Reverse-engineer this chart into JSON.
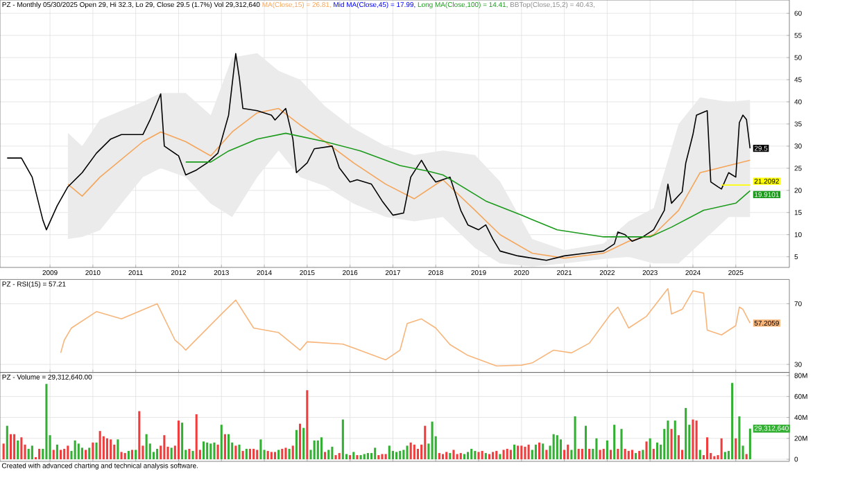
{
  "chart_data": [
    {
      "type": "line",
      "title": "PZ - Monthly 05/30/2025 Open 29, Hi 32.3, Lo 29, Close 29.5 (1.7%) Vol 29,312,640",
      "annotations": [
        "Mid MA(Close,45) = 17.99,",
        "BBTop(Close,15,2) = 40.43,",
        {
          "text": "29.5",
          "x": "2025-05",
          "y": 29.5
        },
        {
          "text": "21.2092",
          "x": "2025-05",
          "y": 21.2092
        },
        {
          "text": "19.9101",
          "x": "2025-05",
          "y": 19.9101
        }
      ],
      "xlim": [
        "2007-11",
        "2026-04"
      ],
      "xticks": [
        "2009",
        "2010",
        "2011",
        "2012",
        "2013",
        "2014",
        "2015",
        "2016",
        "2017",
        "2018",
        "2019",
        "2020",
        "2021",
        "2022",
        "2023",
        "2024",
        "2025"
      ],
      "ylim": [
        2.6,
        63
      ],
      "yticks": [
        5,
        10,
        15,
        20,
        25,
        30,
        35,
        40,
        45,
        50,
        55,
        60
      ],
      "grid": true,
      "series": [
        {
          "name": "MA(Close,15) = 26.81,",
          "color": "#f5a55a",
          "x": [
            "2009-06",
            "2009-10",
            "2010-03",
            "2011-03",
            "2011-08",
            "2012-03",
            "2012-10",
            "2013-04",
            "2013-11",
            "2014-05",
            "2014-11",
            "2015-06",
            "2016-02",
            "2016-11",
            "2017-07",
            "2018-03",
            "2018-12",
            "2019-07",
            "2020-04",
            "2021-01",
            "2021-12",
            "2022-07",
            "2023-02",
            "2023-09",
            "2024-03",
            "2024-11",
            "2025-05"
          ],
          "values": [
            21.4,
            18.7,
            23,
            31,
            33.2,
            31,
            27.8,
            33.2,
            37.5,
            38.5,
            34.8,
            31,
            26.2,
            21.4,
            18.1,
            22.4,
            15.5,
            10,
            5.8,
            4.7,
            5.8,
            8.5,
            10,
            15.5,
            24,
            25.6,
            26.81
          ],
          "lower": [
            9,
            9.5,
            11,
            23,
            25,
            23,
            17,
            14,
            23,
            29,
            23,
            21,
            17,
            14,
            13,
            14,
            7,
            3.5,
            2.8,
            3.5,
            4.5,
            5,
            3.5,
            3.5,
            8,
            14,
            14
          ],
          "upper": [
            33,
            30,
            36,
            40,
            42,
            42,
            37,
            50,
            51,
            47,
            45,
            39,
            34,
            30,
            28,
            29,
            28,
            22,
            9,
            6.5,
            8,
            13,
            16,
            35,
            41,
            40,
            40.43
          ]
        },
        {
          "color": "#000000",
          "x": [
            "2008-01",
            "2008-05",
            "2008-08",
            "2008-11",
            "2008-12",
            "2009-03",
            "2009-06",
            "2009-10",
            "2010-02",
            "2010-06",
            "2010-09",
            "2011-03",
            "2011-05",
            "2011-08",
            "2011-09",
            "2012-01",
            "2012-03",
            "2012-06",
            "2012-09",
            "2012-12",
            "2013-03",
            "2013-05",
            "2013-06",
            "2013-07",
            "2013-11",
            "2014-03",
            "2014-04",
            "2014-07",
            "2014-09",
            "2014-10",
            "2015-01",
            "2015-03",
            "2015-08",
            "2015-10",
            "2016-01",
            "2016-03",
            "2016-07",
            "2016-10",
            "2017-01",
            "2017-04",
            "2017-06",
            "2017-09",
            "2017-11",
            "2018-01",
            "2018-05",
            "2018-08",
            "2018-10",
            "2019-01",
            "2019-03",
            "2019-05",
            "2019-07",
            "2019-12",
            "2020-04",
            "2020-08",
            "2021-01",
            "2021-07",
            "2021-12",
            "2022-03",
            "2022-04",
            "2022-06",
            "2022-08",
            "2022-11",
            "2023-02",
            "2023-05",
            "2023-06",
            "2023-07",
            "2023-10",
            "2023-11",
            "2024-01",
            "2024-02",
            "2024-05",
            "2024-06",
            "2024-08",
            "2024-09",
            "2024-11",
            "2025-01",
            "2025-02",
            "2025-03",
            "2025-04",
            "2025-05"
          ],
          "values": [
            27.3,
            27.3,
            23,
            13.3,
            11.1,
            16.5,
            20.8,
            24,
            28.4,
            31.6,
            32.6,
            32.6,
            35.9,
            41.8,
            30,
            27.8,
            23.5,
            24.6,
            26.2,
            28.4,
            37,
            50.9,
            45.5,
            38.5,
            38,
            37,
            35.9,
            38.5,
            31.6,
            24,
            26.2,
            29.4,
            30,
            25.1,
            21.9,
            22.4,
            21.4,
            17.6,
            14.4,
            14.9,
            23,
            26.8,
            24,
            21.9,
            23,
            15.5,
            12.2,
            11.1,
            12.2,
            9,
            6.3,
            5.2,
            4.7,
            4.2,
            5.2,
            5.8,
            6.3,
            7.9,
            10.6,
            10,
            8.5,
            9.5,
            11.1,
            15.5,
            21.4,
            17.1,
            19.7,
            26.2,
            32.6,
            37,
            38,
            21.9,
            20.8,
            20.3,
            24,
            23,
            35.3,
            37,
            36,
            29.5
          ]
        },
        {
          "name": "Long MA(Close,100) = 14.41,",
          "color": "#1a9a1a",
          "x": [
            "2012-03",
            "2012-10",
            "2013-03",
            "2013-11",
            "2014-07",
            "2015-06",
            "2016-04",
            "2017-03",
            "2017-11",
            "2018-03",
            "2019-03",
            "2020-01",
            "2020-11",
            "2021-12",
            "2023-01",
            "2023-07",
            "2024-04",
            "2025-01",
            "2025-05"
          ],
          "values": [
            26.4,
            26.4,
            28.9,
            31.6,
            32.9,
            31,
            28.9,
            25.6,
            24.3,
            23.5,
            17.6,
            14.4,
            11.1,
            9.5,
            9.5,
            11.7,
            15.5,
            17.1,
            19.9101
          ]
        },
        {
          "color": "#ffff00",
          "x": [
            "2024-09",
            "2025-05"
          ],
          "values": [
            21.2092,
            21.2092
          ]
        }
      ]
    },
    {
      "type": "line",
      "title": "PZ - RSI(15) = 57.21",
      "tick_labels": "y",
      "grid": true,
      "annotations": [
        {
          "text": "57.2059",
          "x": "2025-05",
          "y": 57.2059
        }
      ],
      "xlim": [
        "2007-11",
        "2026-04"
      ],
      "xticks": [
        "2009",
        "2010",
        "2011",
        "2012",
        "2013",
        "2014",
        "2015",
        "2016",
        "2017",
        "2018",
        "2019",
        "2020",
        "2021",
        "2022",
        "2023",
        "2024",
        "2025"
      ],
      "ylim": [
        24.7,
        86
      ],
      "yticks": [
        30,
        70
      ],
      "series": [
        {
          "color": "#f8b57a",
          "x": [
            "2009-04",
            "2009-05",
            "2009-07",
            "2010-02",
            "2010-09",
            "2011-07",
            "2011-12",
            "2012-02",
            "2012-03",
            "2013-01",
            "2013-05",
            "2013-10",
            "2014-05",
            "2014-11",
            "2015-01",
            "2015-11",
            "2016-11",
            "2017-03",
            "2017-05",
            "2017-09",
            "2018-01",
            "2018-05",
            "2018-10",
            "2019-06",
            "2020-01",
            "2020-04",
            "2020-10",
            "2021-03",
            "2021-08",
            "2022-02",
            "2022-04",
            "2022-07",
            "2022-12",
            "2023-06",
            "2023-07",
            "2023-10",
            "2024-01",
            "2024-04",
            "2024-05",
            "2024-09",
            "2025-01",
            "2025-02",
            "2025-03",
            "2025-05"
          ],
          "values": [
            37.6,
            46,
            54,
            64.8,
            60,
            70,
            46,
            42,
            39.4,
            63.2,
            72.4,
            54,
            51,
            39.4,
            44.9,
            43.4,
            33,
            39.4,
            57,
            60,
            54,
            43,
            35.9,
            29,
            29.5,
            31,
            39.4,
            37.6,
            44,
            63.2,
            67.8,
            54,
            61.7,
            80,
            63.2,
            66.3,
            78.5,
            77,
            52.6,
            49.4,
            55.6,
            67.8,
            66.3,
            57.2059
          ]
        }
      ]
    },
    {
      "type": "bar",
      "title": "PZ - Volume = 29,312,640.00",
      "tick_labels": "y",
      "grid": true,
      "annotations": [
        {
          "text": "29,312,640",
          "x": "2025-05",
          "y": 29.31264
        },
        "Created with advanced charting and technical analysis software."
      ],
      "xlim": [
        "2007-11",
        "2026-04"
      ],
      "xticks": [
        "2009",
        "2010",
        "2011",
        "2012",
        "2013",
        "2014",
        "2015",
        "2016",
        "2017",
        "2018",
        "2019",
        "2020",
        "2021",
        "2022",
        "2023",
        "2024",
        "2025"
      ],
      "ylim": [
        -2,
        83
      ],
      "yticks": [
        0,
        {
          "value": 20,
          "label": "20M"
        },
        {
          "value": 40,
          "label": "40M"
        },
        {
          "value": 60,
          "label": "60M"
        },
        {
          "value": 80,
          "label": "80M"
        }
      ],
      "x": [
        "2007-12",
        "2008-01",
        "2008-02",
        "2008-03",
        "2008-04",
        "2008-05",
        "2008-06",
        "2008-07",
        "2008-08",
        "2008-09",
        "2008-10",
        "2008-11",
        "2008-12",
        "2009-01",
        "2009-02",
        "2009-03",
        "2009-04",
        "2009-05",
        "2009-06",
        "2009-07",
        "2009-08",
        "2009-09",
        "2009-10",
        "2009-11",
        "2009-12",
        "2010-01",
        "2010-02",
        "2010-03",
        "2010-04",
        "2010-05",
        "2010-06",
        "2010-07",
        "2010-08",
        "2010-09",
        "2010-10",
        "2010-11",
        "2010-12",
        "2011-01",
        "2011-02",
        "2011-03",
        "2011-04",
        "2011-05",
        "2011-06",
        "2011-07",
        "2011-08",
        "2011-09",
        "2011-10",
        "2011-11",
        "2011-12",
        "2012-01",
        "2012-02",
        "2012-03",
        "2012-04",
        "2012-05",
        "2012-06",
        "2012-07",
        "2012-08",
        "2012-09",
        "2012-10",
        "2012-11",
        "2012-12",
        "2013-01",
        "2013-02",
        "2013-03",
        "2013-04",
        "2013-05",
        "2013-06",
        "2013-07",
        "2013-08",
        "2013-09",
        "2013-10",
        "2013-11",
        "2013-12",
        "2014-01",
        "2014-02",
        "2014-03",
        "2014-04",
        "2014-05",
        "2014-06",
        "2014-07",
        "2014-08",
        "2014-09",
        "2014-10",
        "2014-11",
        "2014-12",
        "2015-01",
        "2015-02",
        "2015-03",
        "2015-04",
        "2015-05",
        "2015-06",
        "2015-07",
        "2015-08",
        "2015-09",
        "2015-10",
        "2015-11",
        "2015-12",
        "2016-01",
        "2016-02",
        "2016-03",
        "2016-04",
        "2016-05",
        "2016-06",
        "2016-07",
        "2016-08",
        "2016-09",
        "2016-10",
        "2016-11",
        "2016-12",
        "2017-01",
        "2017-02",
        "2017-03",
        "2017-04",
        "2017-05",
        "2017-06",
        "2017-07",
        "2017-08",
        "2017-09",
        "2017-10",
        "2017-11",
        "2017-12",
        "2018-01",
        "2018-02",
        "2018-03",
        "2018-04",
        "2018-05",
        "2018-06",
        "2018-07",
        "2018-08",
        "2018-09",
        "2018-10",
        "2018-11",
        "2018-12",
        "2019-01",
        "2019-02",
        "2019-03",
        "2019-04",
        "2019-05",
        "2019-06",
        "2019-07",
        "2019-08",
        "2019-09",
        "2019-10",
        "2019-11",
        "2019-12",
        "2020-01",
        "2020-02",
        "2020-03",
        "2020-04",
        "2020-05",
        "2020-06",
        "2020-07",
        "2020-08",
        "2020-09",
        "2020-10",
        "2020-11",
        "2020-12",
        "2021-01",
        "2021-02",
        "2021-03",
        "2021-04",
        "2021-05",
        "2021-06",
        "2021-07",
        "2021-08",
        "2021-09",
        "2021-10",
        "2021-11",
        "2021-12",
        "2022-01",
        "2022-02",
        "2022-03",
        "2022-04",
        "2022-05",
        "2022-06",
        "2022-07",
        "2022-08",
        "2022-09",
        "2022-10",
        "2022-11",
        "2022-12",
        "2023-01",
        "2023-02",
        "2023-03",
        "2023-04",
        "2023-05",
        "2023-06",
        "2023-07",
        "2023-08",
        "2023-09",
        "2023-10",
        "2023-11",
        "2023-12",
        "2024-01",
        "2024-02",
        "2024-03",
        "2024-04",
        "2024-05",
        "2024-06",
        "2024-07",
        "2024-08",
        "2024-09",
        "2024-10",
        "2024-11",
        "2024-12",
        "2025-01",
        "2025-02",
        "2025-03",
        "2025-04",
        "2025-05"
      ],
      "values": [
        15,
        32,
        24,
        24,
        18,
        21,
        14,
        10,
        13,
        2,
        10,
        10,
        72,
        23,
        9,
        14,
        9,
        10,
        13,
        8,
        18,
        15,
        11,
        9,
        11,
        16,
        16,
        27,
        22,
        20,
        19,
        14,
        19,
        7,
        6,
        8,
        9,
        9,
        46,
        13,
        24,
        15,
        7,
        10,
        13,
        23,
        12,
        11,
        13,
        37,
        35,
        9,
        10,
        8,
        43,
        9,
        17,
        16,
        15,
        16,
        14,
        33,
        24,
        24,
        16,
        13,
        14,
        8,
        10,
        10,
        10,
        9,
        19,
        9,
        8,
        7,
        7,
        9,
        10,
        11,
        10,
        13,
        28,
        34,
        30,
        66,
        9,
        18,
        18,
        21,
        7,
        9,
        12,
        4,
        6,
        38,
        5,
        4,
        7,
        4,
        4,
        5,
        6,
        6,
        11,
        4,
        5,
        5,
        13,
        8,
        7,
        8,
        9,
        13,
        16,
        14,
        10,
        14,
        32,
        15,
        36,
        22,
        6,
        5,
        7,
        6,
        9,
        5,
        6,
        5,
        7,
        10,
        8,
        7,
        8,
        6,
        5,
        7,
        8,
        5,
        9,
        10,
        9,
        14,
        13,
        13,
        12,
        14,
        9,
        14,
        16,
        15,
        9,
        13,
        24,
        23,
        19,
        9,
        14,
        9,
        41,
        10,
        10,
        32,
        10,
        10,
        20,
        9,
        10,
        18,
        9,
        33,
        10,
        29,
        10,
        8,
        9,
        6,
        8,
        9,
        17,
        20,
        10,
        16,
        14,
        29,
        37,
        29,
        37,
        23,
        9,
        49,
        33,
        38,
        37,
        9,
        4,
        21,
        6,
        3,
        4,
        20,
        7,
        8,
        73,
        20,
        41,
        13,
        5,
        29.31264
      ],
      "colors": [
        "#f03c3c",
        "#33b033",
        "#f03c3c",
        "#f03c3c",
        "#33b033",
        "#f03c3c",
        "#f03c3c",
        "#33b033",
        "#33b033",
        "#f03c3c",
        "#f03c3c",
        "#33b033",
        "#33b033",
        "#33b033",
        "#f03c3c",
        "#33b033",
        "#f03c3c",
        "#f03c3c",
        "#f03c3c",
        "#33b033",
        "#33b033",
        "#33b033",
        "#33b033",
        "#f03c3c",
        "#33b033",
        "#f03c3c",
        "#33b033",
        "#f03c3c",
        "#f03c3c",
        "#f03c3c",
        "#f03c3c",
        "#f03c3c",
        "#33b033",
        "#f03c3c",
        "#f03c3c",
        "#33b033",
        "#f03c3c",
        "#33b033",
        "#f03c3c",
        "#f03c3c",
        "#33b033",
        "#33b033",
        "#33b033",
        "#33b033",
        "#f03c3c",
        "#f03c3c",
        "#f03c3c",
        "#33b033",
        "#f03c3c",
        "#f03c3c",
        "#33b033",
        "#33b033",
        "#f03c3c",
        "#33b033",
        "#f03c3c",
        "#f03c3c",
        "#33b033",
        "#33b033",
        "#33b033",
        "#33b033",
        "#f03c3c",
        "#33b033",
        "#f03c3c",
        "#33b033",
        "#33b033",
        "#f03c3c",
        "#33b033",
        "#f03c3c",
        "#33b033",
        "#f03c3c",
        "#f03c3c",
        "#f03c3c",
        "#33b033",
        "#33b033",
        "#f03c3c",
        "#f03c3c",
        "#f03c3c",
        "#33b033",
        "#f03c3c",
        "#f03c3c",
        "#33b033",
        "#f03c3c",
        "#33b033",
        "#f03c3c",
        "#33b033",
        "#f03c3c",
        "#33b033",
        "#33b033",
        "#33b033",
        "#33b033",
        "#f03c3c",
        "#33b033",
        "#33b033",
        "#f03c3c",
        "#f03c3c",
        "#33b033",
        "#33b033",
        "#f03c3c",
        "#33b033",
        "#f03c3c",
        "#33b033",
        "#33b033",
        "#33b033",
        "#33b033",
        "#33b033",
        "#f03c3c",
        "#f03c3c",
        "#f03c3c",
        "#33b033",
        "#33b033",
        "#33b033",
        "#33b033",
        "#33b033",
        "#33b033",
        "#f03c3c",
        "#f03c3c",
        "#f03c3c",
        "#f03c3c",
        "#f03c3c",
        "#33b033",
        "#33b033",
        "#33b033",
        "#f03c3c",
        "#f03c3c",
        "#f03c3c",
        "#33b033",
        "#f03c3c",
        "#f03c3c",
        "#f03c3c",
        "#33b033",
        "#33b033",
        "#33b033",
        "#33b033",
        "#f03c3c",
        "#f03c3c",
        "#33b033",
        "#f03c3c",
        "#f03c3c",
        "#f03c3c",
        "#33b033",
        "#f03c3c",
        "#f03c3c",
        "#f03c3c",
        "#33b033",
        "#f03c3c",
        "#f03c3c",
        "#f03c3c",
        "#f03c3c",
        "#33b033",
        "#33b033",
        "#f03c3c",
        "#33b033",
        "#f03c3c",
        "#33b033",
        "#33b033",
        "#33b033",
        "#33b033",
        "#f03c3c",
        "#f03c3c",
        "#33b033",
        "#33b033",
        "#f03c3c",
        "#f03c3c",
        "#33b033",
        "#f03c3c",
        "#33b033",
        "#33b033",
        "#f03c3c",
        "#f03c3c",
        "#33b033",
        "#f03c3c",
        "#33b033",
        "#f03c3c",
        "#33b033",
        "#f03c3c",
        "#f03c3c",
        "#f03c3c",
        "#33b033",
        "#f03c3c",
        "#33b033",
        "#f03c3c",
        "#33b033",
        "#f03c3c",
        "#33b033",
        "#33b033",
        "#33b033",
        "#33b033",
        "#f03c3c",
        "#33b033",
        "#f03c3c",
        "#f03c3c",
        "#33b033",
        "#33b033",
        "#f03c3c",
        "#f03c3c",
        "#33b033",
        "#f03c3c",
        "#f03c3c",
        "#f03c3c",
        "#f03c3c",
        "#f03c3c",
        "#f03c3c",
        "#33b033",
        "#33b033",
        "#33b033",
        "#f03c3c",
        "#33b033",
        "#33b033",
        "#f03c3c",
        "#33b033"
      ]
    }
  ]
}
